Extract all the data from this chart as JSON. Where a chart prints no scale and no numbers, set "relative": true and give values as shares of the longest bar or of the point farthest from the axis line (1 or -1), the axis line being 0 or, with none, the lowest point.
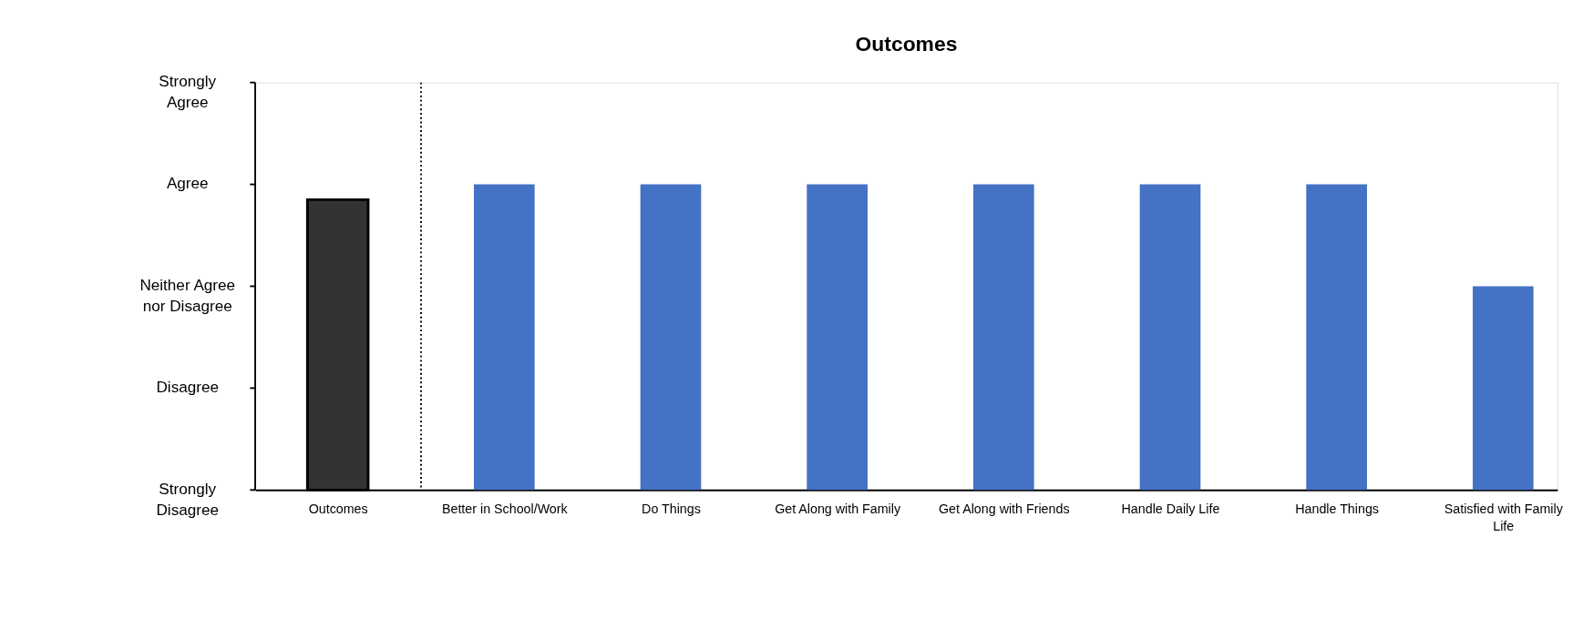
{
  "chart_data": {
    "type": "bar",
    "title": "Outcomes",
    "relative": true,
    "categories": [
      "Outcomes",
      "Better in School/Work",
      "Do Things",
      "Get Along with Family",
      "Get Along with Friends",
      "Handle Daily Life",
      "Handle Things",
      "Satisfied with Family Life"
    ],
    "values": [
      0.95,
      1,
      1,
      1,
      1,
      1,
      1,
      0.667
    ],
    "colors": [
      "#333333",
      "#4472c4",
      "#4472c4",
      "#4472c4",
      "#4472c4",
      "#4472c4",
      "#4472c4",
      "#4472c4"
    ],
    "annotations": [
      "Strongly Disagree",
      "Disagree",
      "Neither Agree nor Disagree",
      "Agree",
      "Strongly Agree"
    ],
    "grid": false
  }
}
